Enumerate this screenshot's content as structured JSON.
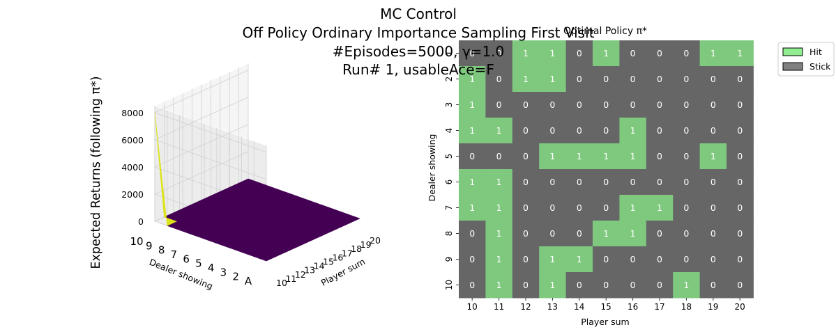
{
  "figure": {
    "suptitle": [
      "MC Control",
      "Off Policy Ordinary Importance Sampling First Visit",
      "#Episodes=5000, γ=1.0",
      "Run# 1, usableAce=F"
    ]
  },
  "chart_data": [
    {
      "type": "surface3d",
      "title": "",
      "xlabel": "Player sum",
      "ylabel": "Dealer showing",
      "zlabel": "Expected Returns (following π*)",
      "x_ticks": [
        "10",
        "11",
        "12",
        "13",
        "14",
        "15",
        "16",
        "17",
        "18",
        "19",
        "20"
      ],
      "y_ticks": [
        "A",
        "2",
        "3",
        "4",
        "5",
        "6",
        "7",
        "8",
        "9",
        "10"
      ],
      "z_ticks": [
        0,
        2000,
        4000,
        6000,
        8000
      ],
      "zlim": [
        0,
        8500
      ],
      "colormap": "viridis",
      "colors": {
        "low": "#440154",
        "mid": "#3b528b",
        "high": "#dce319"
      },
      "peak": {
        "player_sum": 10,
        "dealer_showing": "10",
        "value": 8000
      },
      "surface_notes": "surface near 0 elsewhere with small bumps"
    },
    {
      "type": "heatmap",
      "title": "Optimal Policy π*",
      "xlabel": "Player sum",
      "ylabel": "Dealer showing",
      "x": [
        "10",
        "11",
        "12",
        "13",
        "14",
        "15",
        "16",
        "17",
        "18",
        "19",
        "20"
      ],
      "y": [
        "A",
        "2",
        "3",
        "4",
        "5",
        "6",
        "7",
        "8",
        "9",
        "10"
      ],
      "y_tick_labels": [
        "1",
        "2",
        "3",
        "4",
        "5",
        "6",
        "7",
        "8",
        "9",
        "10"
      ],
      "values": [
        [
          0,
          0,
          1,
          1,
          0,
          1,
          0,
          0,
          0,
          1,
          1
        ],
        [
          1,
          0,
          1,
          1,
          0,
          0,
          0,
          0,
          0,
          0,
          0
        ],
        [
          1,
          0,
          0,
          0,
          0,
          0,
          0,
          0,
          0,
          0,
          0
        ],
        [
          1,
          1,
          0,
          0,
          0,
          0,
          1,
          0,
          0,
          0,
          0
        ],
        [
          0,
          0,
          0,
          1,
          1,
          1,
          1,
          0,
          0,
          1,
          0
        ],
        [
          1,
          1,
          0,
          0,
          0,
          0,
          0,
          0,
          0,
          0,
          0
        ],
        [
          1,
          1,
          0,
          0,
          0,
          0,
          1,
          1,
          0,
          0,
          0
        ],
        [
          0,
          1,
          0,
          0,
          0,
          1,
          1,
          0,
          0,
          0,
          0
        ],
        [
          0,
          1,
          0,
          1,
          1,
          0,
          0,
          0,
          0,
          0,
          0
        ],
        [
          0,
          1,
          0,
          1,
          0,
          0,
          0,
          0,
          1,
          0,
          0
        ]
      ],
      "colors": {
        "hit": "#7fc97f",
        "stick": "#666666"
      },
      "legend": {
        "placement": "upper-right-outside",
        "entries": [
          {
            "label": "Hit",
            "color": "#90ee90"
          },
          {
            "label": "Stick",
            "color": "#808080"
          }
        ]
      }
    }
  ]
}
